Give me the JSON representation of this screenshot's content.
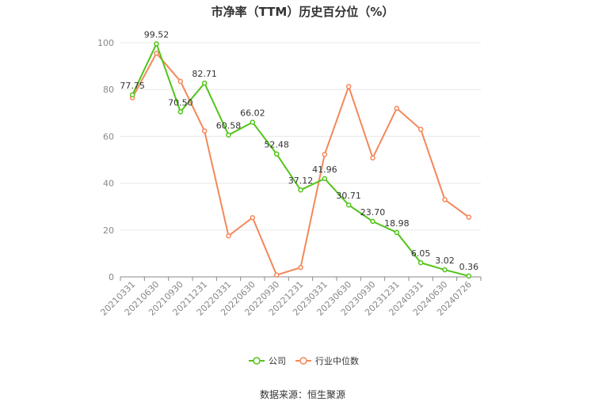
{
  "source": "数据来源：恒生聚源",
  "chart_data": {
    "type": "line",
    "title": "市净率（TTM）历史百分位（%）",
    "xlabel": "",
    "ylabel": "",
    "ylim": [
      0,
      100
    ],
    "yticks": [
      0,
      20,
      40,
      60,
      80,
      100
    ],
    "grid": true,
    "legend_position": "bottom",
    "categories": [
      "20210331",
      "20210630",
      "20210930",
      "20211231",
      "20220331",
      "20220630",
      "20220930",
      "20221231",
      "20230331",
      "20230630",
      "20230930",
      "20231231",
      "20240331",
      "20240630",
      "20240726"
    ],
    "series": [
      {
        "name": "公司",
        "color": "#52c41a",
        "values": [
          77.75,
          99.52,
          70.5,
          82.71,
          60.58,
          66.02,
          52.48,
          37.12,
          41.96,
          30.71,
          23.7,
          18.98,
          6.05,
          3.02,
          0.36
        ],
        "labels": [
          "77.75",
          "99.52",
          "70.50",
          "82.71",
          "60.58",
          "66.02",
          "52.48",
          "37.12",
          "41.96",
          "30.71",
          "23.70",
          "18.98",
          "6.05",
          "3.02",
          "0.36"
        ]
      },
      {
        "name": "行业中位数",
        "color": "#f4875a",
        "values": [
          76.5,
          95.5,
          83.5,
          62.3,
          17.5,
          25.3,
          0.8,
          4.0,
          52.3,
          81.3,
          50.8,
          72.0,
          63.0,
          33.0,
          25.5
        ]
      }
    ]
  }
}
